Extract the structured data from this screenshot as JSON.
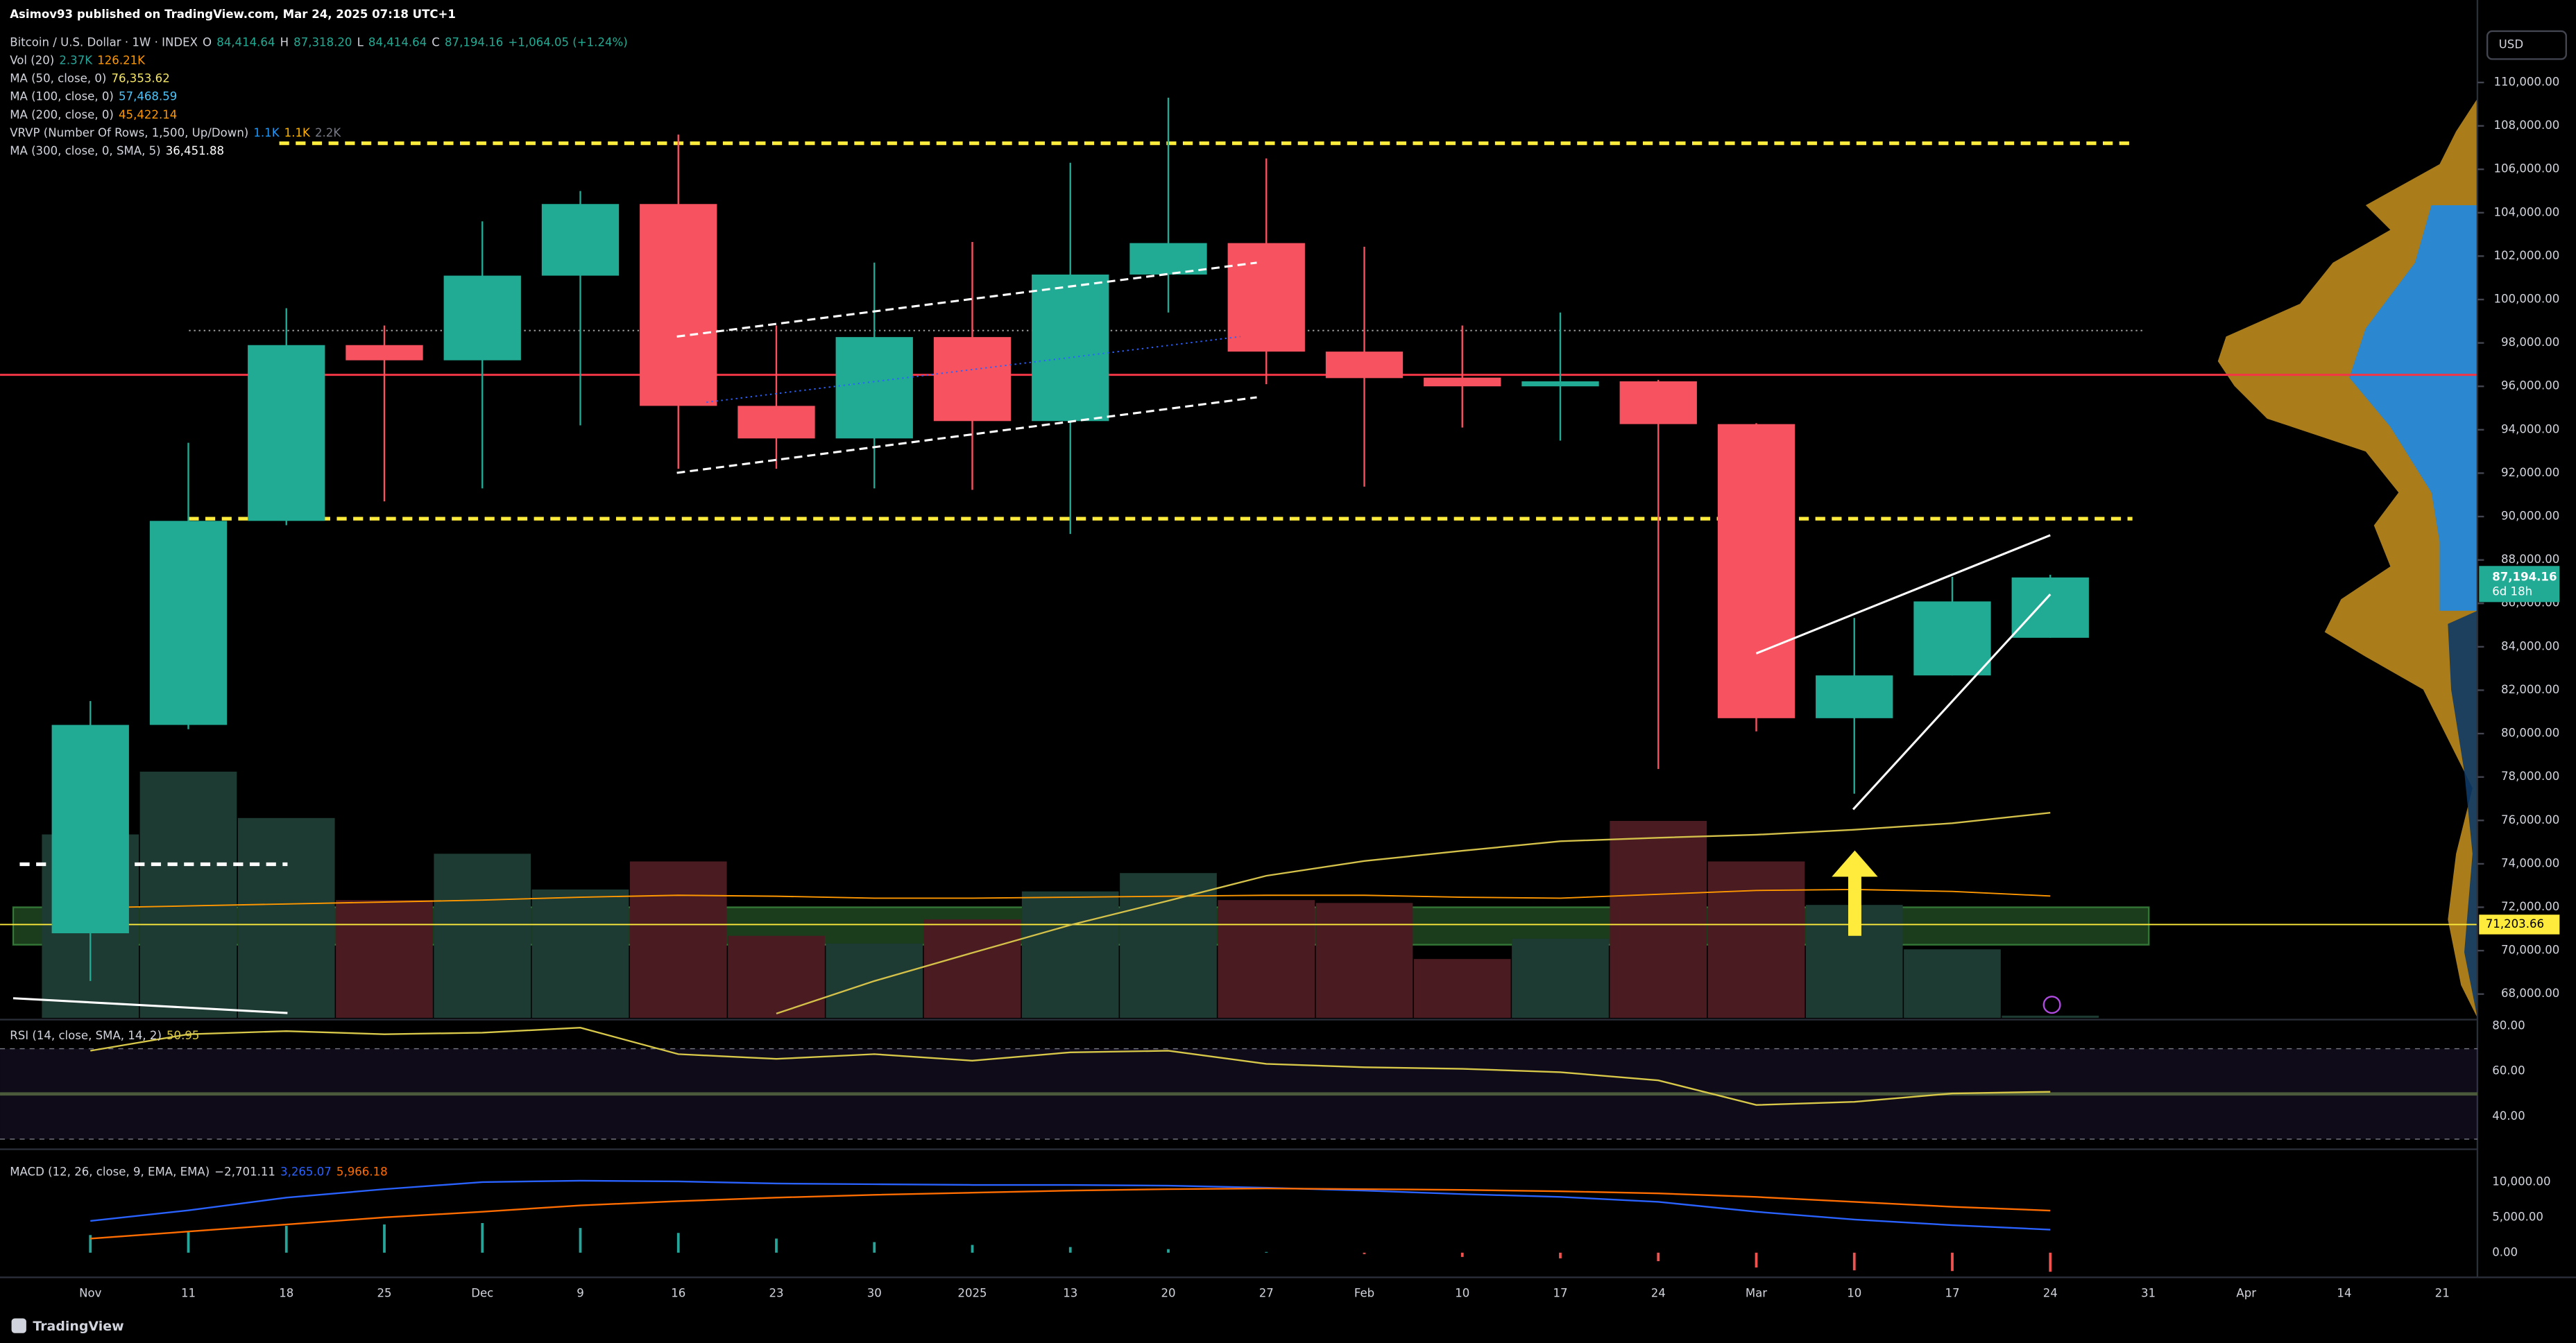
{
  "chart_data": {
    "type": "candlestick",
    "published": "Asimov93 published on TradingView.com, Mar 24, 2025 07:18 UTC+1",
    "title": "Bitcoin / U.S. Dollar · 1W · INDEX",
    "ohlc_legend": [
      {
        "label": "O",
        "value": "84,414.64"
      },
      {
        "label": "H",
        "value": "87,318.20"
      },
      {
        "label": "L",
        "value": "84,414.64"
      },
      {
        "label": "C",
        "value": "87,194.16"
      }
    ],
    "change": "+1,064.05 (+1.24%)",
    "indicators": [
      {
        "name": "Vol (20)",
        "values": [
          "2.37K",
          "126.21K"
        ],
        "colors": [
          "#26a69a",
          "#ff9800"
        ]
      },
      {
        "name": "MA (50, close, 0)",
        "values": [
          "76,353.62"
        ],
        "colors": [
          "#f5e663"
        ]
      },
      {
        "name": "MA (100, close, 0)",
        "values": [
          "57,468.59"
        ],
        "colors": [
          "#4fc3f7"
        ]
      },
      {
        "name": "MA (200, close, 0)",
        "values": [
          "45,422.14"
        ],
        "colors": [
          "#ff9800"
        ]
      },
      {
        "name": "VRVP (Number Of Rows, 1,500, Up/Down)",
        "values": [
          "1.1K",
          "1.1K",
          "2.2K"
        ],
        "colors": [
          "#2196f3",
          "#ffb300",
          "#787b86"
        ]
      },
      {
        "name": "MA (300, close, 0, SMA, 5)",
        "values": [
          "36,451.88"
        ],
        "colors": [
          "#ffffff"
        ]
      }
    ],
    "currency": "USD",
    "brand": "TradingView",
    "categories": [
      "Nov",
      "11",
      "18",
      "25",
      "Dec",
      "9",
      "16",
      "23",
      "30",
      "2025",
      "13",
      "20",
      "27",
      "Feb",
      "10",
      "17",
      "24",
      "Mar",
      "10",
      "17",
      "24",
      "31",
      "Apr",
      "14",
      "21"
    ],
    "open": [
      70800,
      80400,
      89800,
      97900,
      97200,
      101100,
      104400,
      95100,
      93600,
      98270,
      94400,
      101150,
      102600,
      97600,
      96400,
      96000,
      96230,
      94260,
      80710,
      82680,
      84414.64,
      null,
      null,
      null,
      null
    ],
    "high": [
      81500,
      93400,
      99600,
      98800,
      103600,
      105000,
      107600,
      98800,
      101700,
      102650,
      106300,
      109300,
      106500,
      102430,
      98800,
      99400,
      96300,
      94300,
      85330,
      87220,
      87318.2,
      null,
      null,
      null,
      null
    ],
    "low": [
      68600,
      80200,
      89600,
      90700,
      91300,
      94200,
      92200,
      92200,
      91300,
      91230,
      89200,
      99400,
      96100,
      91380,
      94100,
      93500,
      78370,
      80100,
      77230,
      82680,
      84414.64,
      null,
      null,
      null,
      null
    ],
    "close": [
      80400,
      89800,
      97900,
      97200,
      101100,
      104400,
      95100,
      93600,
      98270,
      94400,
      101150,
      102600,
      97600,
      96380,
      96000,
      96230,
      94260,
      80710,
      82680,
      86090,
      87194.16,
      null,
      null,
      null,
      null
    ],
    "up_color": "#22ab94",
    "down_color": "#f7525f",
    "ylim": [
      66900,
      113800
    ],
    "yticks": [
      {
        "value": 110000,
        "label": "110,000.00"
      },
      {
        "value": 108000,
        "label": "108,000.00"
      },
      {
        "value": 106000,
        "label": "106,000.00"
      },
      {
        "value": 104000,
        "label": "104,000.00"
      },
      {
        "value": 102000,
        "label": "102,000.00"
      },
      {
        "value": 100000,
        "label": "100,000.00"
      },
      {
        "value": 98000,
        "label": "98,000.00"
      },
      {
        "value": 96000,
        "label": "96,000.00"
      },
      {
        "value": 94000,
        "label": "94,000.00"
      },
      {
        "value": 92000,
        "label": "92,000.00"
      },
      {
        "value": 90000,
        "label": "90,000.00"
      },
      {
        "value": 88000,
        "label": "88,000.00"
      },
      {
        "value": 86000,
        "label": "86,000.00"
      },
      {
        "value": 84000,
        "label": "84,000.00"
      },
      {
        "value": 82000,
        "label": "82,000.00"
      },
      {
        "value": 80000,
        "label": "80,000.00"
      },
      {
        "value": 78000,
        "label": "78,000.00"
      },
      {
        "value": 76000,
        "label": "76,000.00"
      },
      {
        "value": 74000,
        "label": "74,000.00"
      },
      {
        "value": 72000,
        "label": "72,000.00"
      },
      {
        "value": 70000,
        "label": "70,000.00"
      },
      {
        "value": 68000,
        "label": "68,000.00"
      }
    ],
    "volume": {
      "values": [
        190000,
        255000,
        207000,
        122000,
        170000,
        133000,
        162000,
        85000,
        77000,
        102000,
        131000,
        150000,
        122000,
        119000,
        61000,
        82000,
        204000,
        162000,
        117000,
        71000,
        2370,
        null,
        null,
        null,
        null
      ],
      "ma": [
        114000,
        116000,
        118000,
        120000,
        122000,
        125000,
        127000,
        126000,
        124000,
        124000,
        125000,
        126000,
        127000,
        127000,
        125000,
        124000,
        128000,
        132000,
        133000,
        131000,
        126210,
        null,
        null,
        null,
        null
      ],
      "ma_color": "#ff9800",
      "up_color": "#1d3a33",
      "down_color": "#4a1c22",
      "ylim": [
        0,
        340000
      ]
    },
    "ma50": {
      "values": [
        null,
        null,
        null,
        null,
        null,
        null,
        null,
        67100,
        68600,
        69900,
        71180,
        72300,
        73450,
        74130,
        74600,
        75040,
        75200,
        75340,
        75570,
        75870,
        76353.62,
        null,
        null,
        null,
        null
      ],
      "color": "#d4c14a"
    },
    "levels": [
      {
        "value": 107200,
        "color": "#ffeb3b",
        "style": "dashed"
      },
      {
        "value": 89900,
        "color": "#ffeb3b",
        "style": "dashed"
      },
      {
        "value": 96530,
        "color": "#f23645",
        "style": "solid"
      },
      {
        "value": 98570,
        "color": "#9e9e9e",
        "style": "dotted"
      },
      {
        "value": 73980,
        "color": "#ffffff",
        "style": "dashed"
      },
      {
        "value": 71203.66,
        "label": "71,203.66",
        "color": "#ffeb3b",
        "style": "solid"
      }
    ],
    "zone": {
      "from": 70270,
      "to": 72000,
      "color": "#4caf50"
    },
    "last_price": {
      "label": "87,194.16",
      "countdown": "6d 18h",
      "color": "#22ab94"
    },
    "rsi": {
      "name": "RSI (14, close, SMA, 14, 2)",
      "value_label": "50.95",
      "color": "#d8c84a",
      "values": [
        69.1,
        76.4,
        77.8,
        76.4,
        77.1,
        79.3,
        67.6,
        65.5,
        67.6,
        64.7,
        68.4,
        69.1,
        63.3,
        61.8,
        61.1,
        59.6,
        56,
        45.1,
        46.5,
        50.2,
        50.95,
        null,
        null,
        null,
        null
      ],
      "bands": [
        70,
        50,
        30
      ],
      "band_color": "#7e57c2",
      "ylim": [
        25.5,
        82.9
      ],
      "yticks": [
        {
          "value": 80,
          "label": "80.00"
        },
        {
          "value": 60,
          "label": "60.00"
        },
        {
          "value": 40,
          "label": "40.00"
        }
      ]
    },
    "macd": {
      "name": "MACD (12, 26, close, 9, EMA, EMA)",
      "value_labels": [
        "−2,701.11",
        "3,265.07",
        "5,966.18"
      ],
      "label_colors": [
        "#d1d4dc",
        "#2962ff",
        "#ff6d00"
      ],
      "histogram": [
        2500,
        3000,
        3800,
        4000,
        4200,
        3500,
        2800,
        2000,
        1500,
        1100,
        800,
        500,
        100,
        -200,
        -600,
        -800,
        -1200,
        -2100,
        -2500,
        -2600,
        -2701.11,
        null,
        null,
        null,
        null
      ],
      "macd": [
        4500,
        6000,
        7800,
        9000,
        10000,
        10200,
        10100,
        9800,
        9700,
        9600,
        9600,
        9500,
        9200,
        8800,
        8300,
        7900,
        7200,
        5800,
        4700,
        3900,
        3265.07,
        null,
        null,
        null,
        null
      ],
      "signal": [
        2000,
        3000,
        4000,
        5000,
        5800,
        6700,
        7300,
        7800,
        8200,
        8500,
        8800,
        9000,
        9100,
        9000,
        8900,
        8700,
        8400,
        7900,
        7200,
        6500,
        5966.18,
        null,
        null,
        null,
        null
      ],
      "macd_color": "#2962ff",
      "signal_color": "#ff6d00",
      "pos_color": "#26a69a",
      "neg_color": "#ef5350",
      "ylim": [
        -3490,
        14420
      ],
      "yticks": [
        {
          "value": 10000,
          "label": "10,000.00"
        },
        {
          "value": 5000,
          "label": "5,000.00"
        },
        {
          "value": 0,
          "label": "0.00"
        }
      ]
    }
  }
}
